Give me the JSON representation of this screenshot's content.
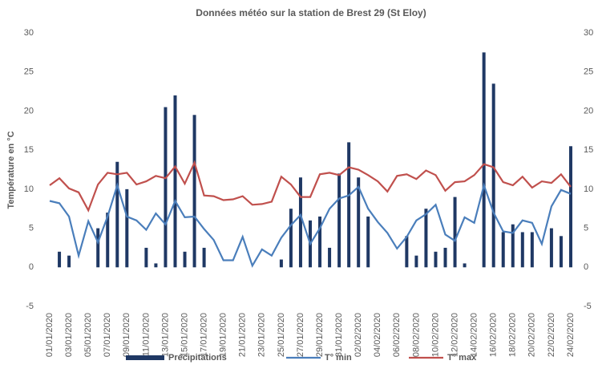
{
  "chart_data": {
    "type": "bar-line",
    "title": "Données météo sur la station de Brest 29 (St Eloy)",
    "ylabel": "Température en °C",
    "categories": [
      "01/01/2020",
      null,
      "03/01/2020",
      null,
      "05/01/2020",
      null,
      "07/01/2020",
      null,
      "09/01/2020",
      null,
      "11/01/2020",
      null,
      "13/01/2020",
      null,
      "15/01/2020",
      null,
      "17/01/2020",
      null,
      "19/01/2020",
      null,
      "21/01/2020",
      null,
      "23/01/2020",
      null,
      "25/01/2020",
      null,
      "27/01/2020",
      null,
      "29/01/2020",
      null,
      "31/01/2020",
      null,
      "02/02/2020",
      null,
      "04/02/2020",
      null,
      "06/02/2020",
      null,
      "08/02/2020",
      null,
      "10/02/2020",
      null,
      "12/02/2020",
      null,
      "14/02/2020",
      null,
      "16/02/2020",
      null,
      "18/02/2020",
      null,
      "20/02/2020",
      null,
      "22/02/2020",
      null,
      "24/02/2020"
    ],
    "series": [
      {
        "name": "Précipitations",
        "kind": "bar",
        "axis": "y2",
        "color": "#1f3864",
        "values": [
          0,
          2,
          1.5,
          0,
          0,
          5,
          7,
          13.5,
          10,
          0,
          2.5,
          0.5,
          20.5,
          22,
          2,
          19.5,
          2.5,
          0,
          0,
          0,
          0,
          0,
          0,
          0,
          1,
          7.5,
          11.5,
          6,
          6.5,
          2.5,
          12,
          16,
          11.5,
          6.5,
          0,
          0,
          0,
          4,
          1.5,
          7.5,
          2,
          2.5,
          9,
          0.5,
          0,
          27.5,
          23.5,
          4.5,
          5.5,
          4.5,
          4.5,
          0,
          5,
          4,
          15.5
        ]
      },
      {
        "name": "T° min",
        "kind": "line",
        "color": "#4a7ebb",
        "values": [
          8.5,
          8.2,
          6.5,
          1.5,
          5.9,
          3.2,
          6.5,
          10.5,
          6.5,
          6,
          4.8,
          6.9,
          5.5,
          8.5,
          6.4,
          6.5,
          4.9,
          3.5,
          0.9,
          0.9,
          3.9,
          0.2,
          2.3,
          1.5,
          3.8,
          5.4,
          6.7,
          3,
          5,
          7.5,
          8.8,
          9.2,
          10.3,
          7.5,
          5.8,
          4.4,
          2.4,
          3.9,
          6,
          6.8,
          8,
          4.2,
          3.4,
          6.4,
          5.7,
          10.5,
          7,
          4.6,
          4.4,
          6,
          5.7,
          3,
          7.8,
          9.9,
          9.4
        ]
      },
      {
        "name": "T° max",
        "kind": "line",
        "color": "#c0504d",
        "values": [
          10.5,
          11.4,
          10.1,
          9.6,
          7.3,
          10.6,
          12.1,
          11.9,
          12.1,
          10.6,
          11,
          11.7,
          11.4,
          12.9,
          10.7,
          13.4,
          9.2,
          9.1,
          8.6,
          8.7,
          9.1,
          8,
          8.1,
          8.4,
          11.6,
          10.6,
          9,
          9,
          11.9,
          12.1,
          11.8,
          12.8,
          12.5,
          11.8,
          11,
          9.7,
          11.7,
          11.9,
          11.3,
          12.4,
          11.8,
          9.8,
          10.9,
          11,
          11.8,
          13.2,
          12.8,
          10.9,
          10.5,
          11.6,
          10.2,
          11,
          10.8,
          11.9,
          10.3
        ]
      }
    ],
    "ylim": [
      -5,
      30
    ],
    "yticks": [
      -5,
      0,
      5,
      10,
      15,
      20,
      25,
      30
    ],
    "y2lim": [
      -5,
      30
    ],
    "y2ticks": [
      -5,
      0,
      5,
      10,
      15,
      20,
      25,
      30
    ],
    "grid": false,
    "legend": "bottom"
  }
}
